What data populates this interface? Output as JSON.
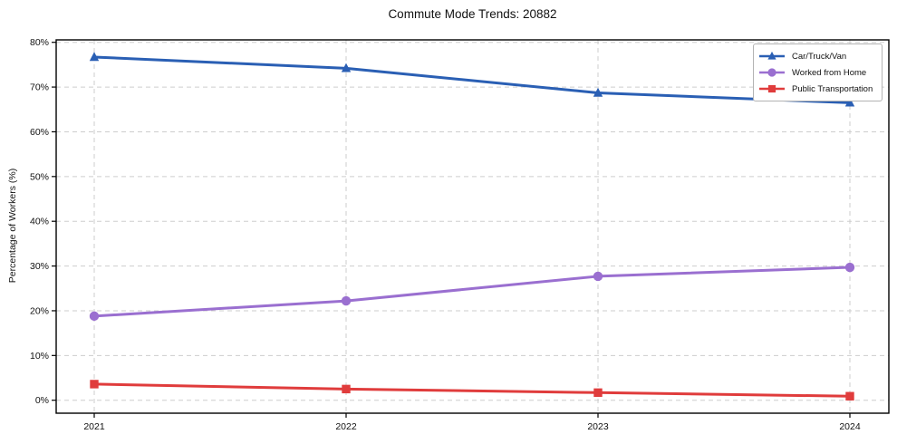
{
  "figure": {
    "title": "Commute Mode Trends: 20882",
    "ylabel": "Percentage of Workers (%)"
  },
  "chart_data": {
    "type": "line",
    "title": "Commute Mode Trends: 20882",
    "xlabel": "",
    "ylabel": "Percentage of Workers (%)",
    "x": [
      2021,
      2022,
      2023,
      2024
    ],
    "x_tick_labels": [
      "2021",
      "2022",
      "2023",
      "2024"
    ],
    "y_tick_labels": [
      "0%",
      "10%",
      "20%",
      "30%",
      "40%",
      "50%",
      "60%",
      "70%",
      "80%"
    ],
    "ylim": [
      0,
      80
    ],
    "ytick_step": 10,
    "grid": true,
    "grid_style": "dashed",
    "legend_position": "upper right",
    "series": [
      {
        "name": "Car/Truck/Van",
        "color": "#2a5fb4",
        "marker": "triangle",
        "values": [
          76.7,
          74.2,
          68.7,
          66.5
        ]
      },
      {
        "name": "Worked from Home",
        "color": "#9a6fd0",
        "marker": "circle",
        "values": [
          18.8,
          22.2,
          27.7,
          29.7
        ]
      },
      {
        "name": "Public Transportation",
        "color": "#e03c3c",
        "marker": "square",
        "values": [
          3.6,
          2.5,
          1.7,
          0.9
        ]
      }
    ]
  }
}
